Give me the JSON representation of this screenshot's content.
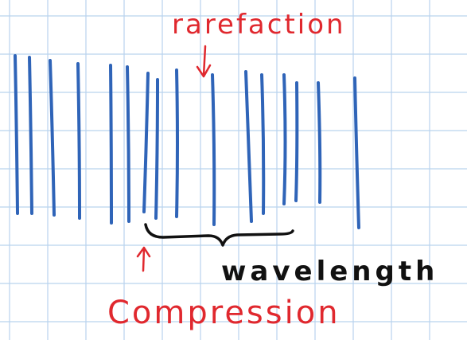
{
  "labels": {
    "rarefaction": "rarefaction",
    "wavelength": "wavelength",
    "compression": "Compression"
  }
}
